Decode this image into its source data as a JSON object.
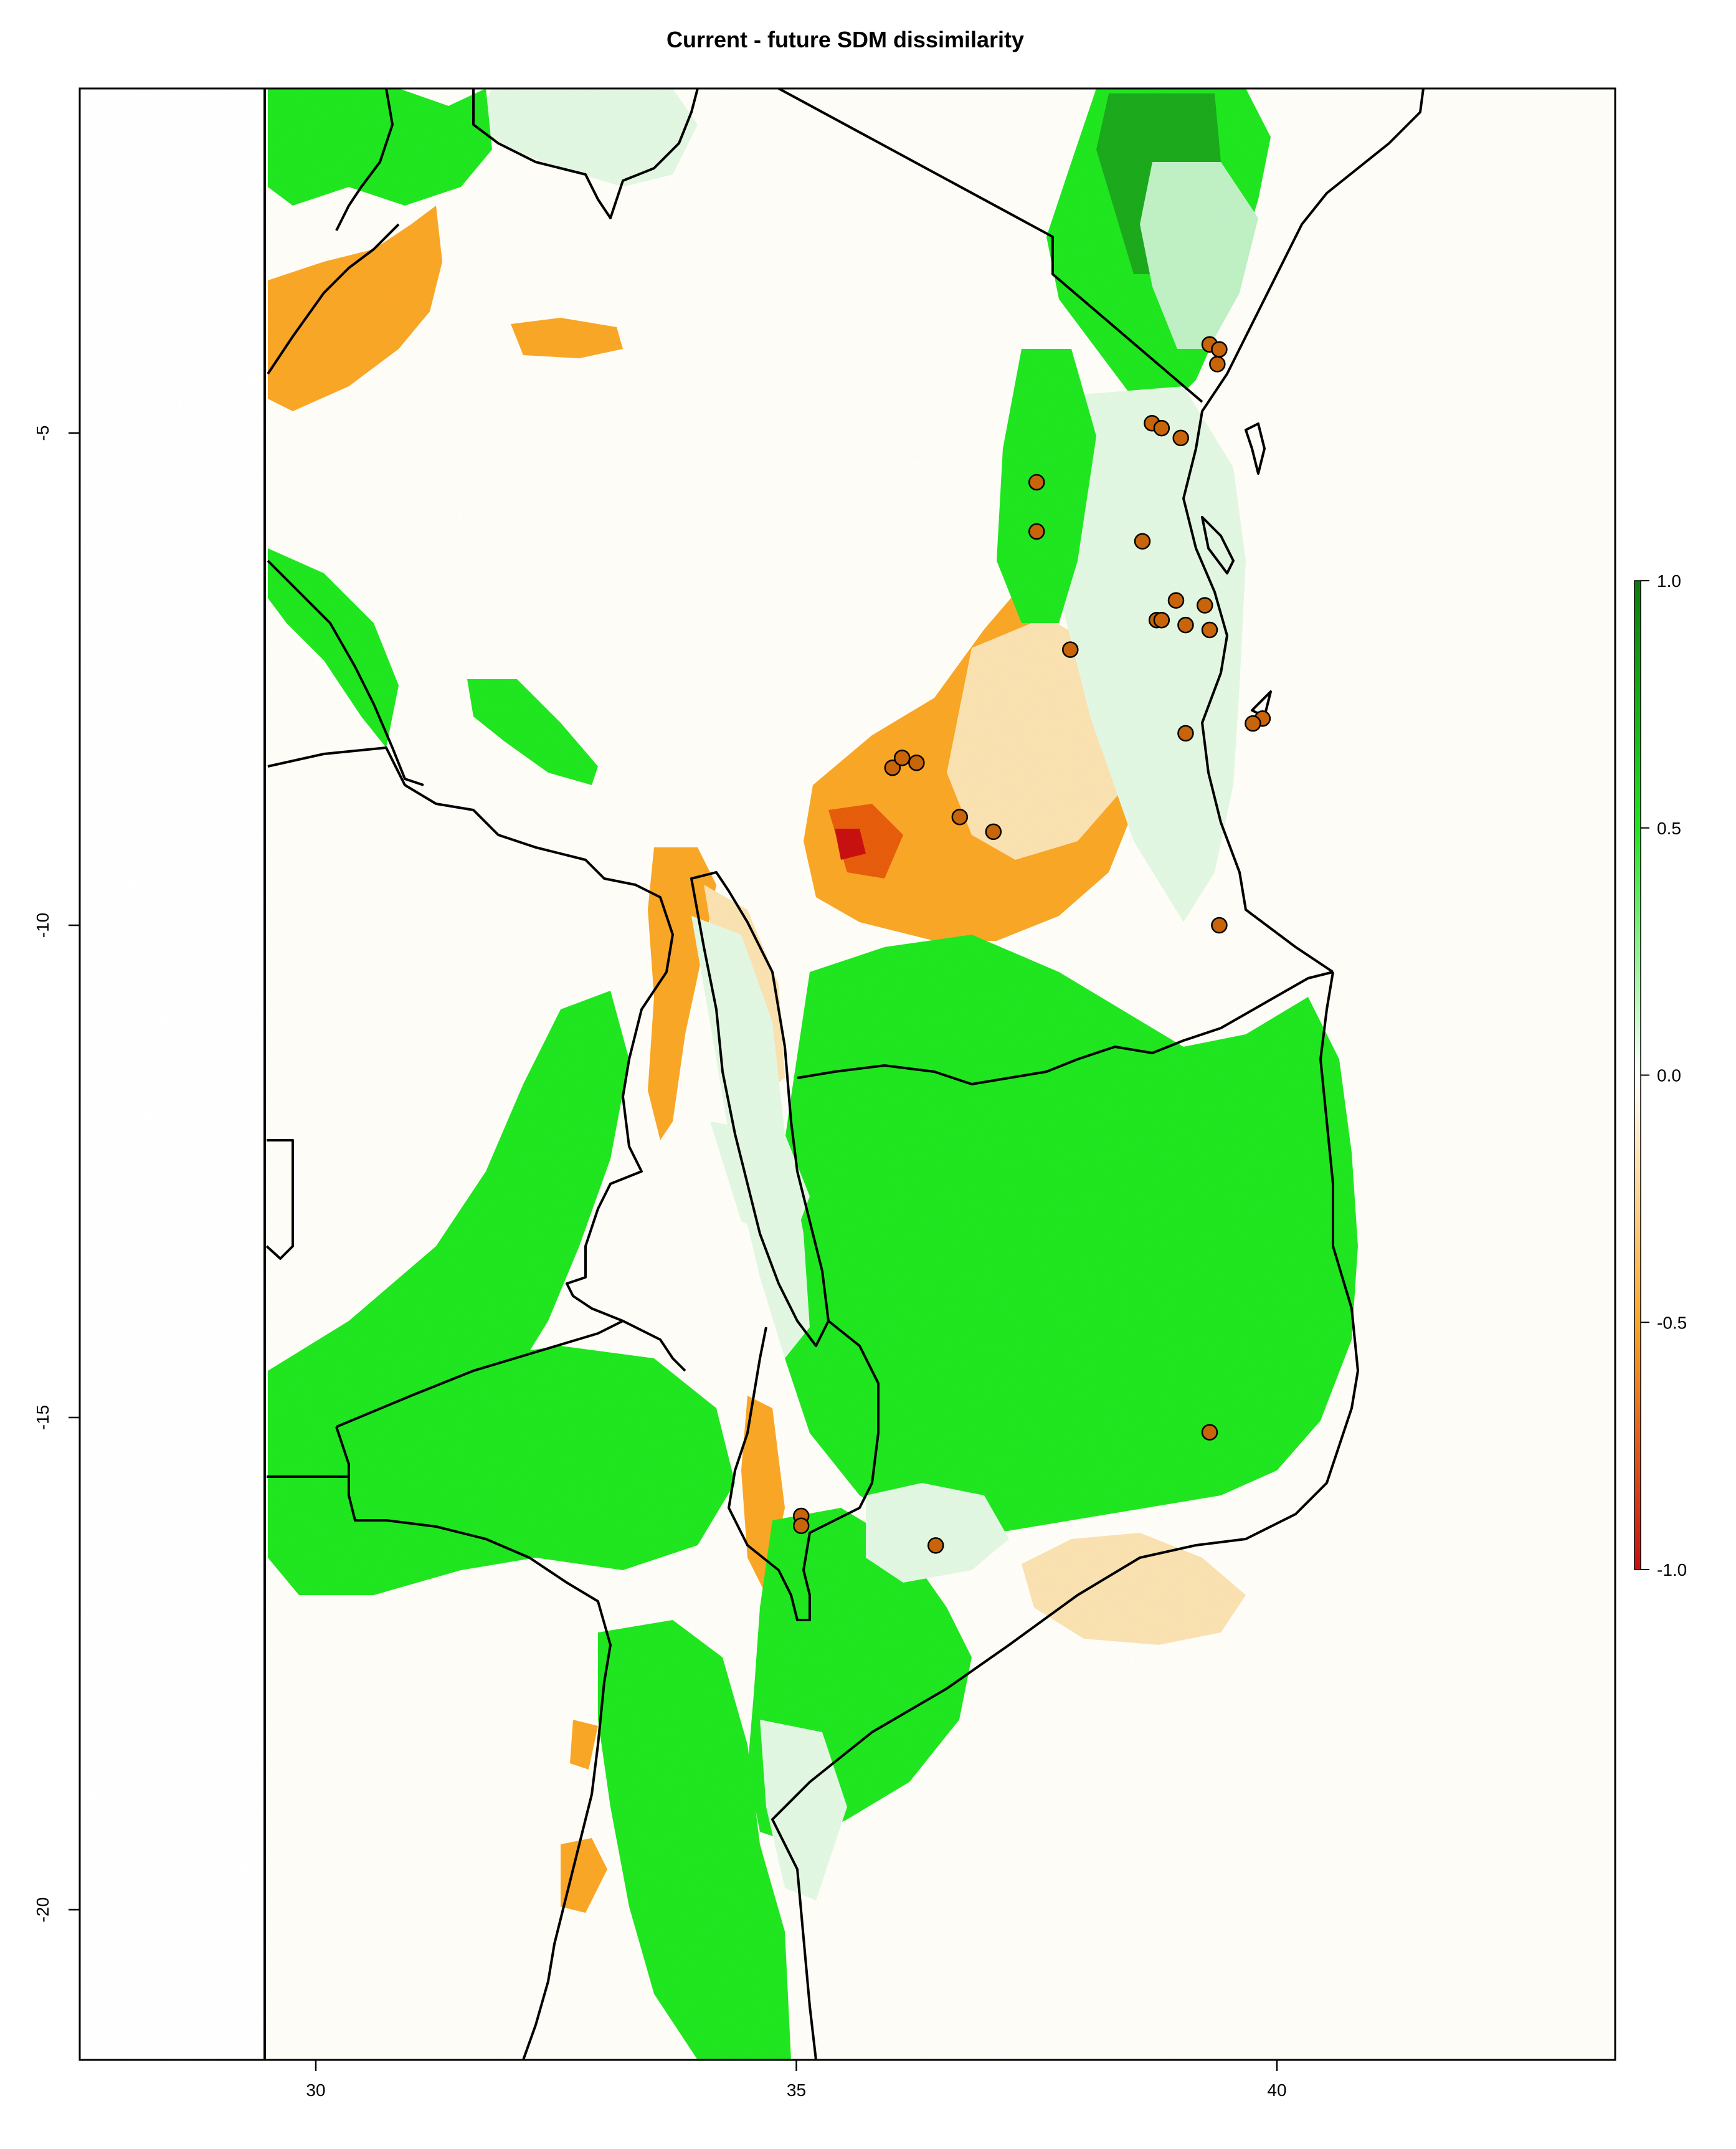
{
  "title": "Current - future SDM dissimilarity",
  "chart_data": {
    "type": "heatmap",
    "subject": "Current - future SDM dissimilarity",
    "x_ticks": [
      30,
      35,
      40
    ],
    "y_ticks": [
      -5,
      -10,
      -15,
      -20
    ],
    "xlim": [
      27.5,
      43.3
    ],
    "ylim": [
      -21.7,
      1.7
    ],
    "grid": false,
    "legend": {
      "placement": "right",
      "ticks": [
        "1.0",
        "0.5",
        "0.0",
        "-0.5",
        "-1.0"
      ],
      "range": [
        -1.0,
        1.0
      ]
    },
    "colors": {
      "background": "#fffdf7",
      "strong_positive": "#1aa91a",
      "positive": "#1ee61e",
      "weak_positive": "#bff0c4",
      "neutral": "#fffdf7",
      "weak_negative": "#fae1b0",
      "negative": "#f9a625",
      "strong_negative": "#e65c0a",
      "extreme_negative": "#c80f0f",
      "occurrence_fill": "#c8640a",
      "borders": "#000000"
    },
    "occurrences": [
      {
        "x": 39.3,
        "y": -4.1
      },
      {
        "x": 39.4,
        "y": -4.15
      },
      {
        "x": 39.38,
        "y": -4.3
      },
      {
        "x": 38.7,
        "y": -4.9
      },
      {
        "x": 38.8,
        "y": -4.95
      },
      {
        "x": 39.0,
        "y": -5.05
      },
      {
        "x": 37.5,
        "y": -5.5
      },
      {
        "x": 37.5,
        "y": -6.0
      },
      {
        "x": 38.6,
        "y": -6.1
      },
      {
        "x": 38.95,
        "y": -6.7
      },
      {
        "x": 38.75,
        "y": -6.9
      },
      {
        "x": 38.8,
        "y": -6.9
      },
      {
        "x": 39.25,
        "y": -6.75
      },
      {
        "x": 39.05,
        "y": -6.95
      },
      {
        "x": 39.3,
        "y": -7.0
      },
      {
        "x": 37.85,
        "y": -7.2
      },
      {
        "x": 39.85,
        "y": -7.9
      },
      {
        "x": 39.75,
        "y": -7.95
      },
      {
        "x": 39.05,
        "y": -8.05
      },
      {
        "x": 36.0,
        "y": -8.4
      },
      {
        "x": 36.1,
        "y": -8.3
      },
      {
        "x": 36.25,
        "y": -8.35
      },
      {
        "x": 36.7,
        "y": -8.9
      },
      {
        "x": 37.05,
        "y": -9.05
      },
      {
        "x": 39.4,
        "y": -10.0
      },
      {
        "x": 39.3,
        "y": -15.15
      },
      {
        "x": 35.05,
        "y": -16.0
      },
      {
        "x": 35.05,
        "y": -16.1
      },
      {
        "x": 36.45,
        "y": -16.3
      }
    ]
  }
}
